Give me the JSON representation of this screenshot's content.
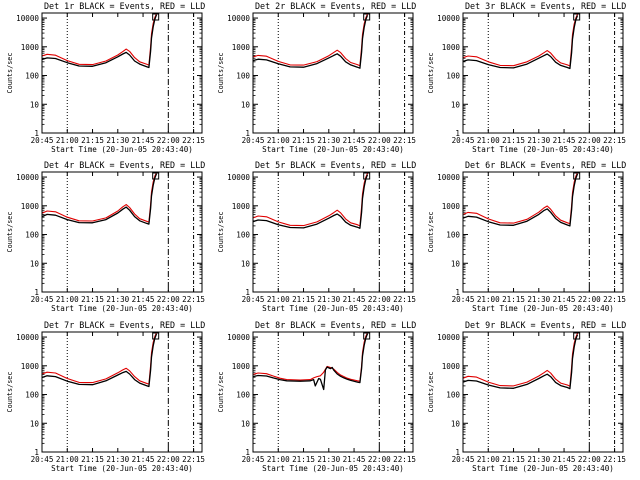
{
  "figure": {
    "x_ticks": [
      "20:45",
      "21:00",
      "21:15",
      "21:30",
      "21:45",
      "22:00",
      "22:15"
    ],
    "y_ticks": [
      "1",
      "10",
      "100",
      "1000",
      "10000"
    ],
    "ylabel": "Counts/sec",
    "xlabel": "Start Time (20-Jun-05 20:43:40)",
    "colors": {
      "events": "#000000",
      "lld": "#e00000",
      "axes": "#000000"
    }
  },
  "chart_data": [
    {
      "type": "line",
      "title": "Det 1r BLACK = Events, RED = LLD",
      "xlabel": "Start Time (20-Jun-05 20:43:40)",
      "ylabel": "Counts/sec",
      "x_unit": "minutes after 20:45",
      "xlim": [
        0,
        95
      ],
      "ylim": [
        1,
        15000
      ],
      "y_scale": "log",
      "markers_min": [
        15,
        75,
        90
      ],
      "series": [
        {
          "name": "Events",
          "color": "#000000",
          "x": [
            0,
            3,
            8,
            15,
            22,
            30,
            38,
            45,
            48,
            50,
            52,
            55,
            58,
            62,
            63.5,
            64.5,
            65,
            66,
            67,
            68
          ],
          "y": [
            360,
            410,
            390,
            280,
            215,
            210,
            280,
            450,
            560,
            640,
            520,
            320,
            250,
            205,
            190,
            700,
            2000,
            5000,
            9000,
            13000
          ]
        },
        {
          "name": "LLD",
          "color": "#e00000",
          "x": [
            0,
            3,
            8,
            15,
            22,
            30,
            38,
            45,
            48,
            50,
            52,
            55,
            58,
            62,
            63.5,
            64.5,
            65,
            66,
            67,
            68
          ],
          "y": [
            480,
            550,
            510,
            330,
            245,
            240,
            320,
            520,
            680,
            830,
            690,
            420,
            300,
            250,
            230,
            1000,
            2800,
            6500,
            10500,
            14000
          ]
        }
      ]
    },
    {
      "type": "line",
      "title": "Det 2r BLACK = Events, RED = LLD",
      "xlabel": "Start Time (20-Jun-05 20:43:40)",
      "ylabel": "Counts/sec",
      "x_unit": "minutes after 20:45",
      "xlim": [
        0,
        95
      ],
      "ylim": [
        1,
        15000
      ],
      "y_scale": "log",
      "markers_min": [
        15,
        75,
        90
      ],
      "series": [
        {
          "name": "Events",
          "color": "#000000",
          "x": [
            0,
            3,
            8,
            15,
            22,
            30,
            38,
            45,
            48,
            50,
            52,
            55,
            58,
            62,
            63.5,
            64.5,
            65,
            66,
            67,
            68
          ],
          "y": [
            330,
            370,
            350,
            255,
            200,
            195,
            260,
            410,
            500,
            570,
            470,
            300,
            235,
            195,
            180,
            650,
            1900,
            4800,
            8800,
            12500
          ]
        },
        {
          "name": "LLD",
          "color": "#e00000",
          "x": [
            0,
            3,
            8,
            15,
            22,
            30,
            38,
            45,
            48,
            50,
            52,
            55,
            58,
            62,
            63.5,
            64.5,
            65,
            66,
            67,
            68
          ],
          "y": [
            440,
            500,
            470,
            310,
            235,
            230,
            305,
            490,
            640,
            760,
            630,
            390,
            285,
            240,
            220,
            950,
            2700,
            6300,
            10200,
            13800
          ]
        }
      ]
    },
    {
      "type": "line",
      "title": "Det 3r BLACK = Events, RED = LLD",
      "xlabel": "Start Time (20-Jun-05 20:43:40)",
      "ylabel": "Counts/sec",
      "x_unit": "minutes after 20:45",
      "xlim": [
        0,
        95
      ],
      "ylim": [
        1,
        15000
      ],
      "y_scale": "log",
      "markers_min": [
        15,
        75,
        90
      ],
      "series": [
        {
          "name": "Events",
          "color": "#000000",
          "x": [
            0,
            3,
            8,
            15,
            22,
            30,
            38,
            45,
            48,
            50,
            52,
            55,
            58,
            62,
            63.5,
            64.5,
            65,
            66,
            67,
            68
          ],
          "y": [
            310,
            350,
            330,
            240,
            190,
            185,
            250,
            400,
            490,
            560,
            460,
            290,
            225,
            190,
            175,
            620,
            1850,
            4700,
            8600,
            12300
          ]
        },
        {
          "name": "LLD",
          "color": "#e00000",
          "x": [
            0,
            3,
            8,
            15,
            22,
            30,
            38,
            45,
            48,
            50,
            52,
            55,
            58,
            62,
            63.5,
            64.5,
            65,
            66,
            67,
            68
          ],
          "y": [
            420,
            480,
            450,
            300,
            225,
            220,
            300,
            480,
            620,
            740,
            610,
            380,
            275,
            235,
            215,
            930,
            2650,
            6200,
            10000,
            13600
          ]
        }
      ]
    },
    {
      "type": "line",
      "title": "Det 4r BLACK = Events, RED = LLD",
      "xlabel": "Start Time (20-Jun-05 20:43:40)",
      "ylabel": "Counts/sec",
      "x_unit": "minutes after 20:45",
      "xlim": [
        0,
        95
      ],
      "ylim": [
        1,
        15000
      ],
      "y_scale": "log",
      "markers_min": [
        15,
        75,
        90
      ],
      "series": [
        {
          "name": "Events",
          "color": "#000000",
          "x": [
            0,
            3,
            8,
            15,
            22,
            30,
            38,
            45,
            48,
            50,
            52,
            55,
            58,
            62,
            63.5,
            64.5,
            65,
            66,
            67,
            68
          ],
          "y": [
            420,
            500,
            470,
            330,
            260,
            255,
            330,
            560,
            760,
            900,
            700,
            420,
            300,
            245,
            230,
            800,
            2200,
            5200,
            9200,
            13000
          ]
        },
        {
          "name": "LLD",
          "color": "#e00000",
          "x": [
            0,
            3,
            8,
            15,
            22,
            30,
            38,
            45,
            48,
            50,
            52,
            55,
            58,
            62,
            63.5,
            64.5,
            65,
            66,
            67,
            68
          ],
          "y": [
            550,
            660,
            620,
            400,
            300,
            295,
            380,
            660,
            920,
            1100,
            870,
            520,
            355,
            290,
            270,
            1100,
            3000,
            6800,
            10800,
            14200
          ]
        }
      ]
    },
    {
      "type": "line",
      "title": "Det 5r BLACK = Events, RED = LLD",
      "xlabel": "Start Time (20-Jun-05 20:43:40)",
      "ylabel": "Counts/sec",
      "x_unit": "minutes after 20:45",
      "xlim": [
        0,
        95
      ],
      "ylim": [
        1,
        15000
      ],
      "y_scale": "log",
      "markers_min": [
        15,
        75,
        90
      ],
      "series": [
        {
          "name": "Events",
          "color": "#000000",
          "x": [
            0,
            3,
            8,
            15,
            22,
            30,
            38,
            45,
            48,
            50,
            52,
            55,
            58,
            62,
            63.5,
            64.5,
            65,
            66,
            67,
            68
          ],
          "y": [
            280,
            320,
            305,
            220,
            175,
            170,
            230,
            370,
            460,
            520,
            430,
            270,
            210,
            180,
            165,
            600,
            1800,
            4600,
            8500,
            12200
          ]
        },
        {
          "name": "LLD",
          "color": "#e00000",
          "x": [
            0,
            3,
            8,
            15,
            22,
            30,
            38,
            45,
            48,
            50,
            52,
            55,
            58,
            62,
            63.5,
            64.5,
            65,
            66,
            67,
            68
          ],
          "y": [
            380,
            440,
            415,
            275,
            210,
            205,
            275,
            450,
            580,
            700,
            570,
            350,
            255,
            220,
            200,
            900,
            2600,
            6100,
            9900,
            13500
          ]
        }
      ]
    },
    {
      "type": "line",
      "title": "Det 6r BLACK = Events, RED = LLD",
      "xlabel": "Start Time (20-Jun-05 20:43:40)",
      "ylabel": "Counts/sec",
      "x_unit": "minutes after 20:45",
      "xlim": [
        0,
        95
      ],
      "ylim": [
        1,
        15000
      ],
      "y_scale": "log",
      "markers_min": [
        15,
        75,
        90
      ],
      "series": [
        {
          "name": "Events",
          "color": "#000000",
          "x": [
            0,
            3,
            8,
            15,
            22,
            30,
            38,
            45,
            48,
            50,
            52,
            55,
            58,
            62,
            63.5,
            64.5,
            65,
            66,
            67,
            68
          ],
          "y": [
            370,
            430,
            405,
            280,
            215,
            210,
            290,
            500,
            680,
            780,
            600,
            360,
            265,
            215,
            200,
            720,
            2050,
            5000,
            9000,
            12800
          ]
        },
        {
          "name": "LLD",
          "color": "#e00000",
          "x": [
            0,
            3,
            8,
            15,
            22,
            30,
            38,
            45,
            48,
            50,
            52,
            55,
            58,
            62,
            63.5,
            64.5,
            65,
            66,
            67,
            68
          ],
          "y": [
            500,
            590,
            550,
            350,
            255,
            250,
            340,
            600,
            840,
            980,
            760,
            450,
            315,
            255,
            240,
            1000,
            2850,
            6600,
            10600,
            14000
          ]
        }
      ]
    },
    {
      "type": "line",
      "title": "Det 7r BLACK = Events, RED = LLD",
      "xlabel": "Start Time (20-Jun-05 20:43:40)",
      "ylabel": "Counts/sec",
      "x_unit": "minutes after 20:45",
      "xlim": [
        0,
        95
      ],
      "ylim": [
        1,
        15000
      ],
      "y_scale": "log",
      "markers_min": [
        15,
        75,
        90
      ],
      "series": [
        {
          "name": "Events",
          "color": "#000000",
          "x": [
            0,
            3,
            8,
            15,
            22,
            30,
            38,
            45,
            48,
            50,
            52,
            55,
            58,
            62,
            63.5,
            64.5,
            65,
            66,
            67,
            68
          ],
          "y": [
            390,
            450,
            420,
            290,
            225,
            220,
            300,
            480,
            580,
            640,
            520,
            330,
            250,
            205,
            190,
            700,
            2000,
            5000,
            9000,
            12800
          ]
        },
        {
          "name": "LLD",
          "color": "#e00000",
          "x": [
            0,
            3,
            8,
            15,
            22,
            30,
            38,
            45,
            48,
            50,
            52,
            55,
            58,
            62,
            63.5,
            64.5,
            65,
            66,
            67,
            68
          ],
          "y": [
            520,
            600,
            560,
            360,
            265,
            260,
            350,
            570,
            720,
            820,
            670,
            420,
            300,
            245,
            230,
            1000,
            2800,
            6500,
            10500,
            14000
          ]
        }
      ]
    },
    {
      "type": "line",
      "title": "Det 8r BLACK = Events, RED = LLD",
      "xlabel": "Start Time (20-Jun-05 20:43:40)",
      "ylabel": "Counts/sec",
      "x_unit": "minutes after 20:45",
      "xlim": [
        0,
        95
      ],
      "ylim": [
        1,
        15000
      ],
      "y_scale": "log",
      "markers_min": [
        15,
        75,
        90
      ],
      "series": [
        {
          "name": "Events",
          "color": "#000000",
          "x": [
            0,
            3,
            8,
            12,
            16,
            20,
            28,
            34,
            36,
            37,
            39,
            40,
            42,
            43,
            44,
            46,
            47,
            48,
            50,
            52,
            54,
            56,
            58,
            60,
            62,
            63.5,
            64.5,
            65,
            66,
            67,
            68
          ],
          "y": [
            420,
            460,
            440,
            380,
            330,
            300,
            290,
            300,
            330,
            200,
            360,
            340,
            150,
            720,
            900,
            800,
            880,
            700,
            520,
            430,
            380,
            340,
            310,
            290,
            270,
            260,
            800,
            2200,
            5200,
            9200,
            13000
          ]
        },
        {
          "name": "LLD",
          "color": "#e00000",
          "x": [
            0,
            3,
            8,
            12,
            16,
            20,
            28,
            34,
            36,
            38,
            40,
            42,
            44,
            46,
            48,
            50,
            52,
            54,
            56,
            58,
            60,
            62,
            63.5,
            64.5,
            65,
            66,
            67,
            68
          ],
          "y": [
            500,
            560,
            530,
            440,
            370,
            330,
            320,
            330,
            380,
            420,
            450,
            600,
            950,
            870,
            760,
            590,
            480,
            420,
            370,
            340,
            320,
            300,
            290,
            1000,
            2900,
            6700,
            10700,
            14000
          ]
        }
      ]
    },
    {
      "type": "line",
      "title": "Det 9r BLACK = Events, RED = LLD",
      "xlabel": "Start Time (20-Jun-05 20:43:40)",
      "ylabel": "Counts/sec",
      "x_unit": "minutes after 20:45",
      "xlim": [
        0,
        95
      ],
      "ylim": [
        1,
        15000
      ],
      "y_scale": "log",
      "markers_min": [
        15,
        75,
        90
      ],
      "series": [
        {
          "name": "Events",
          "color": "#000000",
          "x": [
            0,
            3,
            8,
            15,
            22,
            30,
            38,
            45,
            48,
            50,
            52,
            55,
            58,
            62,
            63.5,
            64.5,
            65,
            66,
            67,
            68
          ],
          "y": [
            270,
            310,
            295,
            215,
            170,
            165,
            225,
            360,
            450,
            510,
            420,
            265,
            205,
            175,
            160,
            590,
            1780,
            4550,
            8400,
            12100
          ]
        },
        {
          "name": "LLD",
          "color": "#e00000",
          "x": [
            0,
            3,
            8,
            15,
            22,
            30,
            38,
            45,
            48,
            50,
            52,
            55,
            58,
            62,
            63.5,
            64.5,
            65,
            66,
            67,
            68
          ],
          "y": [
            370,
            430,
            405,
            270,
            205,
            200,
            270,
            440,
            570,
            690,
            560,
            345,
            250,
            215,
            195,
            880,
            2560,
            6050,
            9850,
            13400
          ]
        }
      ]
    }
  ]
}
